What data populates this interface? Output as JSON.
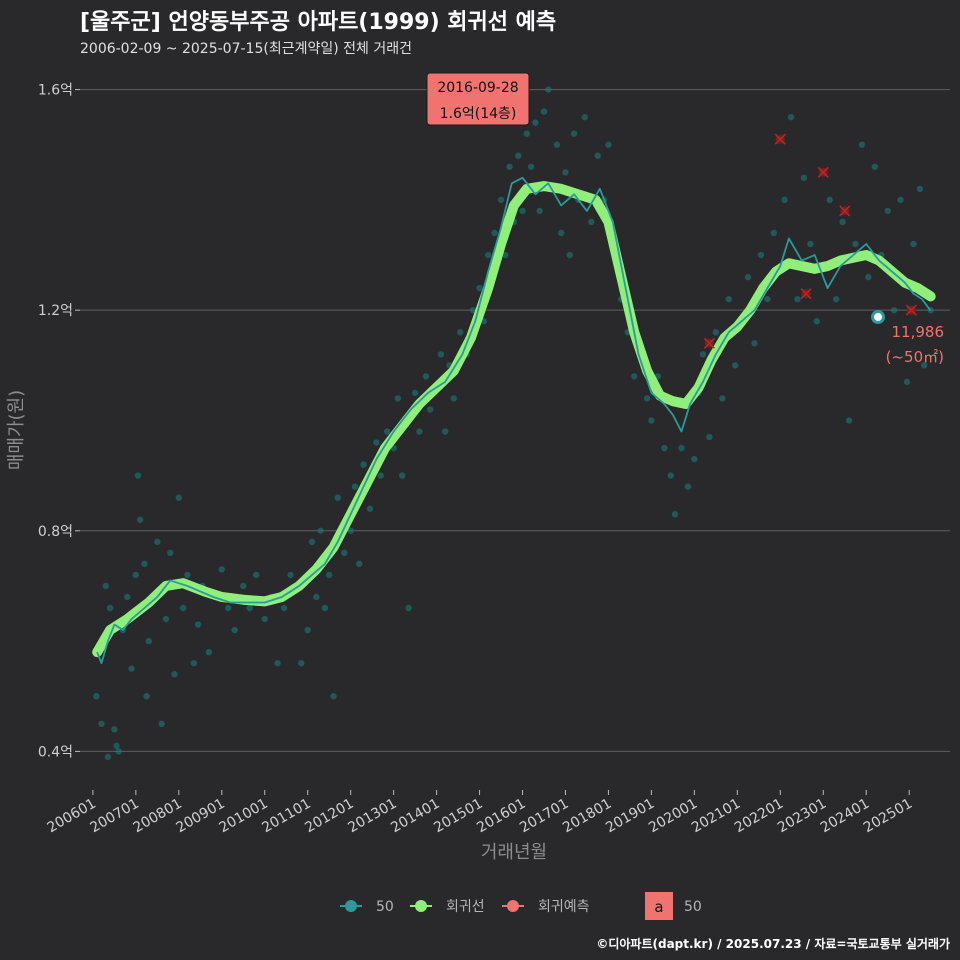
{
  "title": "[울주군] 언양동부주공 아파트(1999) 회귀선 예측",
  "subtitle": "2006-02-09 ~ 2025-07-15(최근계약일) 전체 거래건",
  "caption": "©디아파트(dapt.kr) / 2025.07.23 / 자료=국토교통부 실거래가",
  "colors": {
    "background": "#29292b",
    "grid": "#5f5f5f",
    "scatter": "#1a7a78",
    "moving_avg": "#2a9a9a",
    "regression": "#90ee7a",
    "forecast": "#8b1a1a",
    "annotation_bg": "#f0736f",
    "end_label": "#f0736f"
  },
  "chart_data": {
    "type": "scatter",
    "xlabel": "거래년월",
    "ylabel": "매매가(원)",
    "ylim": [
      0.33,
      1.65
    ],
    "x_range": [
      2005.7,
      2025.95
    ],
    "y_ticks": [
      {
        "value": 0.4,
        "label": "0.4억"
      },
      {
        "value": 0.8,
        "label": "0.8억"
      },
      {
        "value": 1.2,
        "label": "1.2억"
      },
      {
        "value": 1.6,
        "label": "1.6억"
      }
    ],
    "x_ticks": [
      {
        "value": 2006.0,
        "label": "200601"
      },
      {
        "value": 2007.0,
        "label": "200701"
      },
      {
        "value": 2008.0,
        "label": "200801"
      },
      {
        "value": 2009.0,
        "label": "200901"
      },
      {
        "value": 2010.0,
        "label": "201001"
      },
      {
        "value": 2011.0,
        "label": "201101"
      },
      {
        "value": 2012.0,
        "label": "201201"
      },
      {
        "value": 2013.0,
        "label": "201301"
      },
      {
        "value": 2014.0,
        "label": "201401"
      },
      {
        "value": 2015.0,
        "label": "201501"
      },
      {
        "value": 2016.0,
        "label": "201601"
      },
      {
        "value": 2017.0,
        "label": "201701"
      },
      {
        "value": 2018.0,
        "label": "201801"
      },
      {
        "value": 2019.0,
        "label": "201901"
      },
      {
        "value": 2020.0,
        "label": "202001"
      },
      {
        "value": 2021.0,
        "label": "202101"
      },
      {
        "value": 2022.0,
        "label": "202201"
      },
      {
        "value": 2023.0,
        "label": "202301"
      },
      {
        "value": 2024.0,
        "label": "202401"
      },
      {
        "value": 2025.0,
        "label": "202501"
      }
    ],
    "series": [
      {
        "name": "50",
        "kind": "moving_average",
        "points": [
          [
            2006.1,
            0.58
          ],
          [
            2006.2,
            0.56
          ],
          [
            2006.35,
            0.6
          ],
          [
            2006.5,
            0.63
          ],
          [
            2006.7,
            0.62
          ],
          [
            2006.9,
            0.64
          ],
          [
            2007.2,
            0.66
          ],
          [
            2007.5,
            0.68
          ],
          [
            2007.8,
            0.71
          ],
          [
            2008.2,
            0.7
          ],
          [
            2008.5,
            0.69
          ],
          [
            2008.8,
            0.68
          ],
          [
            2009.2,
            0.67
          ],
          [
            2009.6,
            0.67
          ],
          [
            2010.0,
            0.67
          ],
          [
            2010.4,
            0.68
          ],
          [
            2010.8,
            0.7
          ],
          [
            2011.1,
            0.72
          ],
          [
            2011.4,
            0.74
          ],
          [
            2011.7,
            0.78
          ],
          [
            2012.0,
            0.83
          ],
          [
            2012.3,
            0.88
          ],
          [
            2012.6,
            0.93
          ],
          [
            2013.0,
            0.98
          ],
          [
            2013.4,
            1.02
          ],
          [
            2013.8,
            1.05
          ],
          [
            2014.2,
            1.07
          ],
          [
            2014.6,
            1.12
          ],
          [
            2014.9,
            1.18
          ],
          [
            2015.2,
            1.27
          ],
          [
            2015.5,
            1.35
          ],
          [
            2015.75,
            1.43
          ],
          [
            2016.0,
            1.44
          ],
          [
            2016.3,
            1.41
          ],
          [
            2016.6,
            1.43
          ],
          [
            2016.9,
            1.39
          ],
          [
            2017.2,
            1.41
          ],
          [
            2017.5,
            1.38
          ],
          [
            2017.8,
            1.42
          ],
          [
            2018.1,
            1.36
          ],
          [
            2018.4,
            1.24
          ],
          [
            2018.7,
            1.12
          ],
          [
            2019.0,
            1.05
          ],
          [
            2019.3,
            1.03
          ],
          [
            2019.5,
            1.01
          ],
          [
            2019.7,
            0.98
          ],
          [
            2019.9,
            1.03
          ],
          [
            2020.2,
            1.07
          ],
          [
            2020.5,
            1.12
          ],
          [
            2020.8,
            1.16
          ],
          [
            2021.1,
            1.18
          ],
          [
            2021.4,
            1.2
          ],
          [
            2021.7,
            1.24
          ],
          [
            2022.0,
            1.28
          ],
          [
            2022.2,
            1.33
          ],
          [
            2022.5,
            1.29
          ],
          [
            2022.8,
            1.3
          ],
          [
            2023.1,
            1.24
          ],
          [
            2023.4,
            1.28
          ],
          [
            2023.7,
            1.3
          ],
          [
            2024.0,
            1.32
          ],
          [
            2024.3,
            1.29
          ],
          [
            2024.6,
            1.27
          ],
          [
            2024.9,
            1.25
          ],
          [
            2025.1,
            1.23
          ],
          [
            2025.3,
            1.22
          ],
          [
            2025.5,
            1.199
          ]
        ]
      },
      {
        "name": "회귀선",
        "kind": "regression",
        "points": [
          [
            2006.1,
            0.58
          ],
          [
            2006.4,
            0.62
          ],
          [
            2006.8,
            0.64
          ],
          [
            2007.3,
            0.67
          ],
          [
            2007.7,
            0.7
          ],
          [
            2008.1,
            0.705
          ],
          [
            2008.6,
            0.69
          ],
          [
            2009.0,
            0.68
          ],
          [
            2009.5,
            0.675
          ],
          [
            2010.0,
            0.672
          ],
          [
            2010.4,
            0.68
          ],
          [
            2010.8,
            0.7
          ],
          [
            2011.2,
            0.73
          ],
          [
            2011.6,
            0.77
          ],
          [
            2012.0,
            0.83
          ],
          [
            2012.4,
            0.89
          ],
          [
            2012.8,
            0.95
          ],
          [
            2013.2,
            0.99
          ],
          [
            2013.6,
            1.03
          ],
          [
            2014.0,
            1.06
          ],
          [
            2014.4,
            1.09
          ],
          [
            2014.8,
            1.15
          ],
          [
            2015.2,
            1.24
          ],
          [
            2015.5,
            1.32
          ],
          [
            2015.8,
            1.39
          ],
          [
            2016.1,
            1.42
          ],
          [
            2016.5,
            1.425
          ],
          [
            2016.9,
            1.42
          ],
          [
            2017.3,
            1.41
          ],
          [
            2017.7,
            1.4
          ],
          [
            2018.0,
            1.36
          ],
          [
            2018.3,
            1.26
          ],
          [
            2018.6,
            1.16
          ],
          [
            2018.9,
            1.09
          ],
          [
            2019.2,
            1.045
          ],
          [
            2019.5,
            1.035
          ],
          [
            2019.8,
            1.03
          ],
          [
            2020.1,
            1.06
          ],
          [
            2020.4,
            1.11
          ],
          [
            2020.7,
            1.15
          ],
          [
            2021.0,
            1.17
          ],
          [
            2021.3,
            1.2
          ],
          [
            2021.6,
            1.24
          ],
          [
            2021.9,
            1.27
          ],
          [
            2022.2,
            1.285
          ],
          [
            2022.5,
            1.28
          ],
          [
            2022.8,
            1.275
          ],
          [
            2023.1,
            1.28
          ],
          [
            2023.4,
            1.29
          ],
          [
            2023.7,
            1.295
          ],
          [
            2024.0,
            1.3
          ],
          [
            2024.3,
            1.29
          ],
          [
            2024.6,
            1.27
          ],
          [
            2024.9,
            1.25
          ],
          [
            2025.2,
            1.24
          ],
          [
            2025.5,
            1.225
          ]
        ]
      },
      {
        "name": "회귀예측",
        "kind": "forecast",
        "points": [
          [
            2020.35,
            1.14
          ],
          [
            2022.0,
            1.51
          ],
          [
            2022.6,
            1.23
          ],
          [
            2023.0,
            1.45
          ],
          [
            2023.5,
            1.38
          ],
          [
            2025.05,
            1.2
          ]
        ]
      }
    ],
    "scatter_points": [
      [
        2006.08,
        0.5
      ],
      [
        2006.2,
        0.45
      ],
      [
        2006.3,
        0.7
      ],
      [
        2006.35,
        0.39
      ],
      [
        2006.4,
        0.66
      ],
      [
        2006.5,
        0.44
      ],
      [
        2006.55,
        0.41
      ],
      [
        2006.6,
        0.4
      ],
      [
        2006.7,
        0.62
      ],
      [
        2006.8,
        0.68
      ],
      [
        2006.9,
        0.55
      ],
      [
        2007.0,
        0.72
      ],
      [
        2007.05,
        0.9
      ],
      [
        2007.1,
        0.82
      ],
      [
        2007.2,
        0.74
      ],
      [
        2007.25,
        0.5
      ],
      [
        2007.3,
        0.6
      ],
      [
        2007.45,
        0.68
      ],
      [
        2007.5,
        0.78
      ],
      [
        2007.6,
        0.45
      ],
      [
        2007.7,
        0.64
      ],
      [
        2007.8,
        0.76
      ],
      [
        2007.9,
        0.54
      ],
      [
        2008.0,
        0.86
      ],
      [
        2008.1,
        0.66
      ],
      [
        2008.2,
        0.72
      ],
      [
        2008.35,
        0.56
      ],
      [
        2008.45,
        0.63
      ],
      [
        2008.55,
        0.7
      ],
      [
        2008.7,
        0.58
      ],
      [
        2008.85,
        0.68
      ],
      [
        2009.0,
        0.73
      ],
      [
        2009.15,
        0.66
      ],
      [
        2009.3,
        0.62
      ],
      [
        2009.5,
        0.7
      ],
      [
        2009.65,
        0.66
      ],
      [
        2009.8,
        0.72
      ],
      [
        2010.0,
        0.64
      ],
      [
        2010.15,
        0.68
      ],
      [
        2010.3,
        0.56
      ],
      [
        2010.45,
        0.66
      ],
      [
        2010.6,
        0.72
      ],
      [
        2010.75,
        0.7
      ],
      [
        2010.85,
        0.56
      ],
      [
        2011.0,
        0.62
      ],
      [
        2011.1,
        0.78
      ],
      [
        2011.2,
        0.68
      ],
      [
        2011.3,
        0.8
      ],
      [
        2011.4,
        0.66
      ],
      [
        2011.5,
        0.72
      ],
      [
        2011.6,
        0.5
      ],
      [
        2011.7,
        0.86
      ],
      [
        2011.85,
        0.76
      ],
      [
        2012.0,
        0.8
      ],
      [
        2012.1,
        0.88
      ],
      [
        2012.2,
        0.74
      ],
      [
        2012.3,
        0.92
      ],
      [
        2012.45,
        0.84
      ],
      [
        2012.6,
        0.96
      ],
      [
        2012.7,
        0.9
      ],
      [
        2012.85,
        0.98
      ],
      [
        2013.0,
        0.95
      ],
      [
        2013.1,
        1.04
      ],
      [
        2013.2,
        0.9
      ],
      [
        2013.25,
        1.0
      ],
      [
        2013.35,
        0.66
      ],
      [
        2013.5,
        1.05
      ],
      [
        2013.6,
        0.98
      ],
      [
        2013.75,
        1.08
      ],
      [
        2013.85,
        1.02
      ],
      [
        2014.0,
        1.06
      ],
      [
        2014.1,
        1.12
      ],
      [
        2014.2,
        0.98
      ],
      [
        2014.3,
        1.1
      ],
      [
        2014.4,
        1.04
      ],
      [
        2014.55,
        1.16
      ],
      [
        2014.7,
        1.12
      ],
      [
        2014.85,
        1.2
      ],
      [
        2015.0,
        1.24
      ],
      [
        2015.1,
        1.18
      ],
      [
        2015.2,
        1.3
      ],
      [
        2015.35,
        1.34
      ],
      [
        2015.5,
        1.4
      ],
      [
        2015.6,
        1.3
      ],
      [
        2015.7,
        1.46
      ],
      [
        2015.8,
        1.36
      ],
      [
        2015.9,
        1.48
      ],
      [
        2016.0,
        1.38
      ],
      [
        2016.1,
        1.52
      ],
      [
        2016.2,
        1.46
      ],
      [
        2016.3,
        1.54
      ],
      [
        2016.4,
        1.38
      ],
      [
        2016.5,
        1.56
      ],
      [
        2016.6,
        1.6
      ],
      [
        2016.7,
        1.42
      ],
      [
        2016.8,
        1.5
      ],
      [
        2016.9,
        1.34
      ],
      [
        2017.0,
        1.45
      ],
      [
        2017.1,
        1.3
      ],
      [
        2017.2,
        1.52
      ],
      [
        2017.3,
        1.4
      ],
      [
        2017.45,
        1.55
      ],
      [
        2017.6,
        1.36
      ],
      [
        2017.75,
        1.48
      ],
      [
        2017.9,
        1.4
      ],
      [
        2018.0,
        1.5
      ],
      [
        2018.15,
        1.3
      ],
      [
        2018.3,
        1.22
      ],
      [
        2018.45,
        1.16
      ],
      [
        2018.6,
        1.08
      ],
      [
        2018.75,
        1.12
      ],
      [
        2018.9,
        1.04
      ],
      [
        2019.0,
        1.0
      ],
      [
        2019.15,
        1.08
      ],
      [
        2019.3,
        0.95
      ],
      [
        2019.45,
        0.9
      ],
      [
        2019.55,
        0.83
      ],
      [
        2019.7,
        0.95
      ],
      [
        2019.85,
        0.88
      ],
      [
        2020.0,
        0.93
      ],
      [
        2020.1,
        1.05
      ],
      [
        2020.2,
        1.12
      ],
      [
        2020.35,
        0.97
      ],
      [
        2020.5,
        1.16
      ],
      [
        2020.65,
        1.04
      ],
      [
        2020.8,
        1.22
      ],
      [
        2020.95,
        1.1
      ],
      [
        2021.1,
        1.18
      ],
      [
        2021.25,
        1.26
      ],
      [
        2021.4,
        1.14
      ],
      [
        2021.55,
        1.3
      ],
      [
        2021.7,
        1.22
      ],
      [
        2021.85,
        1.34
      ],
      [
        2022.0,
        1.28
      ],
      [
        2022.1,
        1.4
      ],
      [
        2022.25,
        1.55
      ],
      [
        2022.4,
        1.22
      ],
      [
        2022.55,
        1.44
      ],
      [
        2022.7,
        1.32
      ],
      [
        2022.85,
        1.18
      ],
      [
        2023.0,
        1.28
      ],
      [
        2023.15,
        1.4
      ],
      [
        2023.3,
        1.22
      ],
      [
        2023.45,
        1.36
      ],
      [
        2023.6,
        1.0
      ],
      [
        2023.75,
        1.32
      ],
      [
        2023.9,
        1.5
      ],
      [
        2024.05,
        1.26
      ],
      [
        2024.2,
        1.46
      ],
      [
        2024.35,
        1.3
      ],
      [
        2024.5,
        1.38
      ],
      [
        2024.65,
        1.2
      ],
      [
        2024.8,
        1.4
      ],
      [
        2024.95,
        1.07
      ],
      [
        2025.1,
        1.32
      ],
      [
        2025.25,
        1.42
      ],
      [
        2025.35,
        1.1
      ],
      [
        2025.5,
        1.2
      ]
    ],
    "annotation": {
      "x": 2016.6,
      "y": 1.6,
      "date": "2016-09-28",
      "value": "1.6억(14층)"
    },
    "end_point": {
      "x": 2025.54,
      "y": 1.1986,
      "value_label": "11,986",
      "area_label": "(~50㎡)"
    },
    "legend": {
      "placement": "bottom",
      "items": [
        "50",
        "회귀선",
        "회귀예측"
      ],
      "box_letter": "a",
      "box_label": "50"
    }
  }
}
